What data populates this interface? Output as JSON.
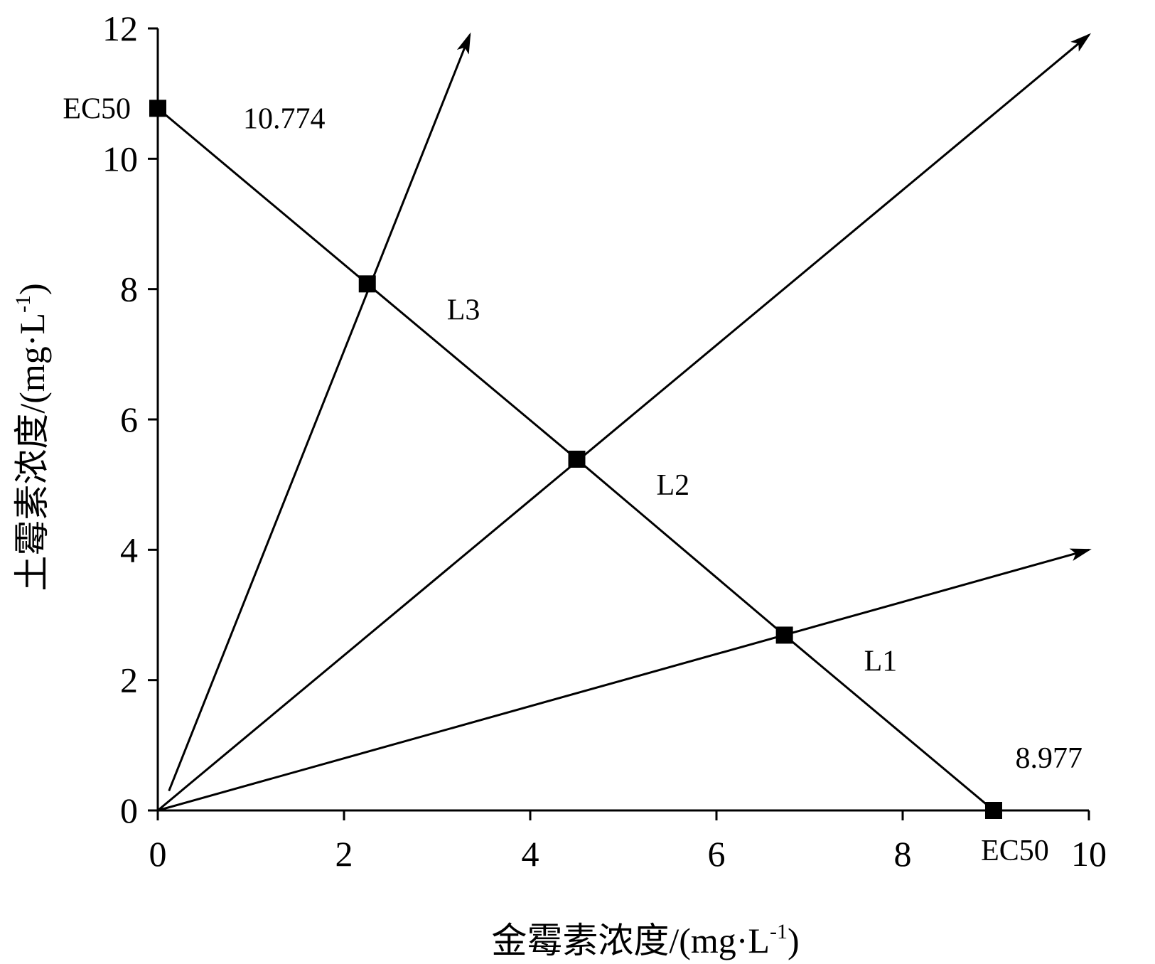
{
  "chart_data": {
    "type": "line",
    "xlabel": {
      "text": "金霉素浓度/(mg·L",
      "sup": "-1",
      "close": ")"
    },
    "ylabel": {
      "text": "土霉素浓度/(mg·L",
      "sup": "-1",
      "close": ")"
    },
    "xlim": [
      0,
      10
    ],
    "ylim": [
      0,
      12
    ],
    "xticks": [
      "0",
      "2",
      "4",
      "6",
      "8",
      "10"
    ],
    "yticks": [
      "0",
      "2",
      "4",
      "6",
      "8",
      "10",
      "12"
    ],
    "grid": false,
    "isobole": {
      "points": [
        {
          "x": 0,
          "y": 10.774,
          "label": "EC50",
          "value_label": "10.774"
        },
        {
          "x": 2.25,
          "y": 8.08
        },
        {
          "x": 4.5,
          "y": 5.39
        },
        {
          "x": 6.73,
          "y": 2.69
        },
        {
          "x": 8.977,
          "y": 0,
          "label": "EC50",
          "value_label": "8.977"
        }
      ]
    },
    "rays": [
      {
        "name": "L1",
        "start": [
          0,
          0
        ],
        "end": [
          10,
          4.0
        ]
      },
      {
        "name": "L2",
        "start": [
          0,
          0
        ],
        "end": [
          10,
          11.9
        ]
      },
      {
        "name": "L3",
        "start": [
          0.12,
          0.3
        ],
        "end": [
          3.35,
          11.9
        ]
      }
    ],
    "colors": {
      "line": "#000000",
      "marker": "#000000"
    }
  }
}
